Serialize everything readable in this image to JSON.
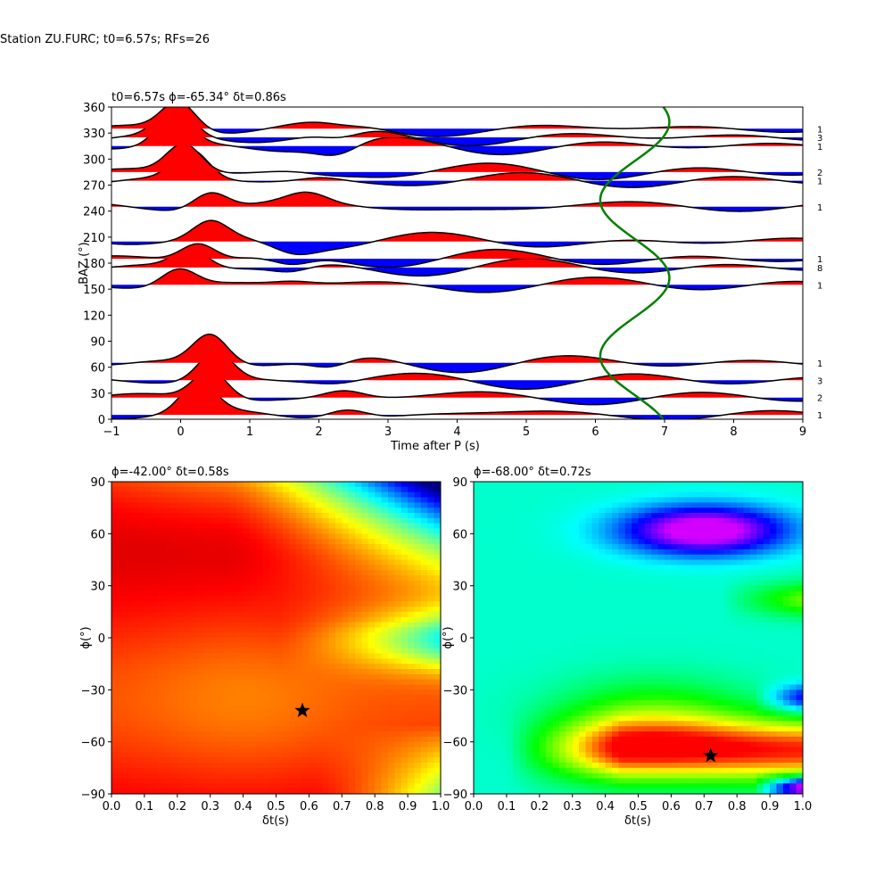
{
  "suptitle": "Station ZU.FURC; t0=6.57s; RFs=26",
  "chart_data": [
    {
      "type": "line",
      "title": "t0=6.57s ϕ=-65.34° δt=0.86s",
      "xlabel": "Time after P (s)",
      "ylabel": "BAZ (°)",
      "xlim": [
        -1,
        9
      ],
      "ylim": [
        0,
        360
      ],
      "xticks": [
        "−1",
        "0",
        "1",
        "2",
        "3",
        "4",
        "5",
        "6",
        "7",
        "8",
        "9"
      ],
      "yticks": [
        "0",
        "30",
        "60",
        "90",
        "120",
        "150",
        "180",
        "210",
        "240",
        "270",
        "300",
        "330",
        "360"
      ],
      "grid": false,
      "traces": [
        {
          "baz": 5,
          "count": "1"
        },
        {
          "baz": 25,
          "count": "2"
        },
        {
          "baz": 45,
          "count": "3"
        },
        {
          "baz": 65,
          "count": "1"
        },
        {
          "baz": 155,
          "count": "1"
        },
        {
          "baz": 175,
          "count": "8"
        },
        {
          "baz": 185,
          "count": "1"
        },
        {
          "baz": 205,
          "count": ""
        },
        {
          "baz": 245,
          "count": "1"
        },
        {
          "baz": 275,
          "count": "1"
        },
        {
          "baz": 285,
          "count": "2"
        },
        {
          "baz": 315,
          "count": "1"
        },
        {
          "baz": 325,
          "count": "3"
        },
        {
          "baz": 335,
          "count": "1"
        }
      ],
      "t0_curve": {
        "color": "#008000",
        "t0": 6.57,
        "amplitude": 0.5
      }
    },
    {
      "type": "heatmap",
      "title": "ϕ=-42.00° δt=0.58s",
      "xlabel": "δt(s)",
      "ylabel": "ϕ(°)",
      "xlim": [
        0.0,
        1.0
      ],
      "ylim": [
        -90,
        90
      ],
      "xticks": [
        "0.0",
        "0.1",
        "0.2",
        "0.3",
        "0.4",
        "0.5",
        "0.6",
        "0.7",
        "0.8",
        "0.9",
        "1.0"
      ],
      "yticks": [
        "−90",
        "−60",
        "−30",
        "0",
        "30",
        "60",
        "90"
      ],
      "colormap": "jet",
      "best": {
        "dt": 0.58,
        "phi": -42.0
      }
    },
    {
      "type": "heatmap",
      "title": "ϕ=-68.00° δt=0.72s",
      "xlabel": "δt(s)",
      "ylabel": "ϕ(°)",
      "xlim": [
        0.0,
        1.0
      ],
      "ylim": [
        -90,
        90
      ],
      "xticks": [
        "0.0",
        "0.1",
        "0.2",
        "0.3",
        "0.4",
        "0.5",
        "0.6",
        "0.7",
        "0.8",
        "0.9",
        "1.0"
      ],
      "yticks": [
        "−90",
        "−60",
        "−30",
        "0",
        "30",
        "60",
        "90"
      ],
      "colormap": "hsv",
      "best": {
        "dt": 0.72,
        "phi": -68.0
      }
    }
  ],
  "colors": {
    "positive": "#ff0000",
    "negative": "#0000ff",
    "trace": "#000000",
    "t0_curve": "#008000"
  }
}
